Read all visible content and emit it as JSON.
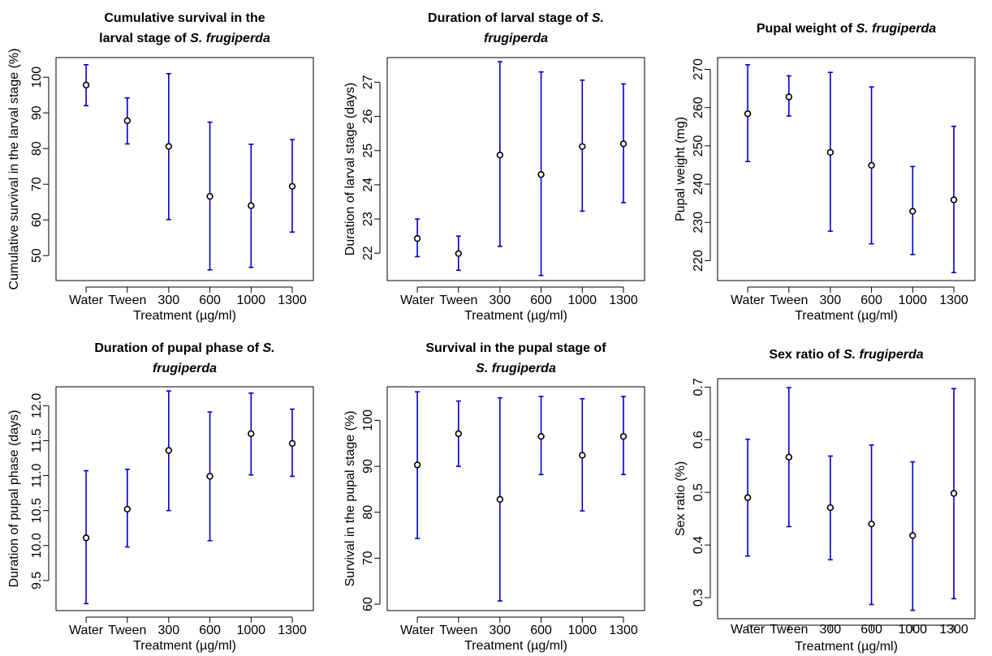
{
  "colors": {
    "error_bar": "#0000cc",
    "point": "#000000",
    "background": "#ffffff"
  },
  "chart_data": [
    {
      "type": "errorbar",
      "title": [
        "Cumulative survival in the",
        "larval stage of |S. frugiperda|"
      ],
      "xlabel": "Treatment (µg/ml)",
      "ylabel": "Cumulative survival in the larval stage (%)",
      "categories": [
        "Water",
        "Tween",
        "300",
        "600",
        "1000",
        "1300"
      ],
      "ylim": [
        43,
        105.5
      ],
      "yticks": [
        "50",
        "60",
        "70",
        "80",
        "90",
        "100"
      ],
      "mean": [
        97.8,
        87.8,
        80.6,
        66.6,
        64.0,
        69.4
      ],
      "lower": [
        92.0,
        81.3,
        60.1,
        46.0,
        46.7,
        56.6
      ],
      "upper": [
        103.5,
        94.2,
        101.0,
        87.4,
        81.2,
        82.5
      ]
    },
    {
      "type": "errorbar",
      "title": [
        "Duration of larval stage of |S.|",
        "|frugiperda|"
      ],
      "xlabel": "Treatment (µg/ml)",
      "ylabel": "Duration of larval stage (days)",
      "categories": [
        "Water",
        "Tween",
        "300",
        "600",
        "1000",
        "1300"
      ],
      "ylim": [
        21.2,
        27.72
      ],
      "yticks": [
        "22",
        "23",
        "24",
        "25",
        "26",
        "27"
      ],
      "mean": [
        22.43,
        21.99,
        24.87,
        24.3,
        25.12,
        25.2
      ],
      "lower": [
        21.9,
        21.5,
        22.2,
        21.35,
        23.23,
        23.48
      ],
      "upper": [
        23.0,
        22.5,
        27.6,
        27.3,
        27.06,
        26.95
      ]
    },
    {
      "type": "errorbar",
      "title": [
        "Pupal weight of |S. frugiperda|"
      ],
      "xlabel": "Treatment (µg/ml)",
      "ylabel": "Pupal weight  (mg)",
      "categories": [
        "Water",
        "Tween",
        "300",
        "600",
        "1000",
        "1300"
      ],
      "ylim": [
        214.8,
        273.07
      ],
      "yticks": [
        "220",
        "230",
        "240",
        "250",
        "260",
        "270"
      ],
      "mean": [
        258.4,
        262.8,
        248.3,
        244.9,
        232.9,
        235.9
      ],
      "lower": [
        245.9,
        257.8,
        227.7,
        224.4,
        221.6,
        216.9
      ],
      "upper": [
        271.2,
        268.3,
        269.2,
        265.4,
        244.6,
        255.1
      ]
    },
    {
      "type": "errorbar",
      "title": [
        "Duration of pupal phase of |S.|",
        "|frugiperda|"
      ],
      "xlabel": "Treatment (µg/ml)",
      "ylabel": "Duration of pupal phase (days)",
      "categories": [
        "Water",
        "Tween",
        "300",
        "600",
        "1000",
        "1300"
      ],
      "ylim": [
        9.07,
        12.27
      ],
      "yticks": [
        "9.5",
        "10.0",
        "10.5",
        "11.0",
        "11.5",
        "12.0"
      ],
      "mean": [
        10.11,
        10.52,
        11.36,
        10.99,
        11.6,
        11.46
      ],
      "lower": [
        9.17,
        9.98,
        10.5,
        10.07,
        11.01,
        10.99
      ],
      "upper": [
        11.07,
        11.09,
        12.21,
        11.91,
        12.18,
        11.95
      ]
    },
    {
      "type": "errorbar",
      "title": [
        "Survival in the pupal stage of",
        "|S. frugiperda|"
      ],
      "xlabel": "Treatment (µg/ml)",
      "ylabel": "Survival in the pupal stage (%)",
      "categories": [
        "Water",
        "Tween",
        "300",
        "600",
        "1000",
        "1300"
      ],
      "ylim": [
        58.6,
        107.3
      ],
      "yticks": [
        "60",
        "70",
        "80",
        "90",
        "100"
      ],
      "mean": [
        90.3,
        97.1,
        82.8,
        96.5,
        92.4,
        96.5
      ],
      "lower": [
        74.3,
        90.0,
        60.7,
        88.2,
        80.3,
        88.2
      ],
      "upper": [
        106.2,
        104.2,
        104.9,
        105.2,
        104.7,
        105.2
      ]
    },
    {
      "type": "errorbar",
      "title": [
        "Sex ratio of |S. frugiperda|"
      ],
      "xlabel": "Treatment (µg/ml)",
      "ylabel": "Sex ratio (%)",
      "categories": [
        "Water",
        "Tween",
        "300",
        "600",
        "1000",
        "1300"
      ],
      "ylim": [
        0.26,
        0.716
      ],
      "yticks": [
        "0.3",
        "0.4",
        "0.5",
        "0.6",
        "0.7"
      ],
      "mean": [
        0.49,
        0.567,
        0.471,
        0.44,
        0.418,
        0.498
      ],
      "lower": [
        0.379,
        0.435,
        0.372,
        0.287,
        0.276,
        0.298
      ],
      "upper": [
        0.601,
        0.699,
        0.569,
        0.59,
        0.558,
        0.697
      ]
    }
  ]
}
